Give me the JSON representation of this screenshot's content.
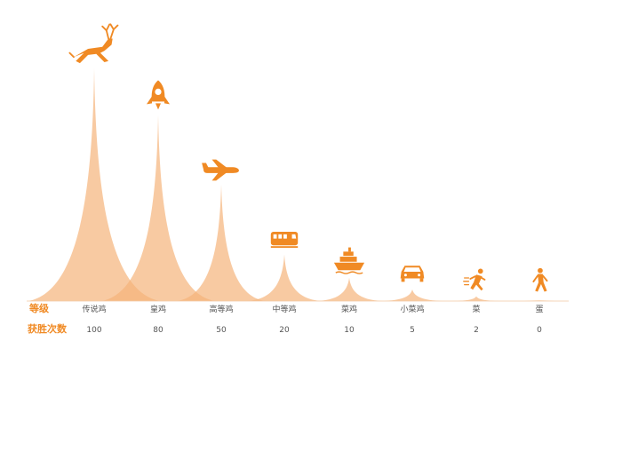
{
  "chart_data": {
    "type": "area",
    "row_labels": {
      "level": "等级",
      "wins": "获胜次数"
    },
    "categories": [
      "传说鸡",
      "皇鸡",
      "高等鸡",
      "中等鸡",
      "菜鸡",
      "小菜鸡",
      "菜",
      "蛋"
    ],
    "values": [
      100,
      80,
      50,
      20,
      10,
      5,
      2,
      0
    ],
    "icons": [
      "deer-icon",
      "rocket-icon",
      "airplane-icon",
      "train-icon",
      "ship-icon",
      "car-icon",
      "runner-icon",
      "walker-icon"
    ],
    "colors": {
      "accent": "#f08a24",
      "fill": "#f5b47a",
      "label": "#555555",
      "axis": "#f3c9a3"
    }
  }
}
